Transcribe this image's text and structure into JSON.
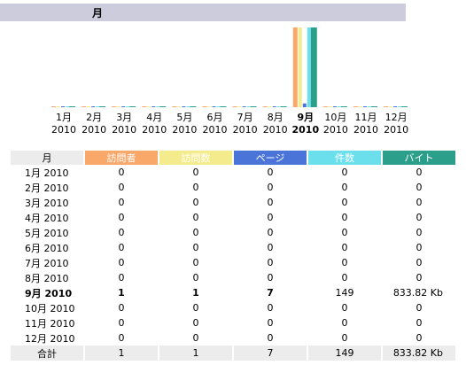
{
  "header": {
    "title": "月"
  },
  "table": {
    "columns": [
      "月",
      "訪問者",
      "訪問数",
      "ページ",
      "件数",
      "バイト"
    ],
    "colors": [
      "#f9a86a",
      "#f4ec8c",
      "#4a74d8",
      "#6cdfec",
      "#2c9f8a"
    ],
    "current": 8,
    "rows": [
      {
        "month": "1月",
        "year": "2010",
        "visitors": 0,
        "visits": 0,
        "pages": 0,
        "hits": 0,
        "bytes": 0
      },
      {
        "month": "2月",
        "year": "2010",
        "visitors": 0,
        "visits": 0,
        "pages": 0,
        "hits": 0,
        "bytes": 0
      },
      {
        "month": "3月",
        "year": "2010",
        "visitors": 0,
        "visits": 0,
        "pages": 0,
        "hits": 0,
        "bytes": 0
      },
      {
        "month": "4月",
        "year": "2010",
        "visitors": 0,
        "visits": 0,
        "pages": 0,
        "hits": 0,
        "bytes": 0
      },
      {
        "month": "5月",
        "year": "2010",
        "visitors": 0,
        "visits": 0,
        "pages": 0,
        "hits": 0,
        "bytes": 0
      },
      {
        "month": "6月",
        "year": "2010",
        "visitors": 0,
        "visits": 0,
        "pages": 0,
        "hits": 0,
        "bytes": 0
      },
      {
        "month": "7月",
        "year": "2010",
        "visitors": 0,
        "visits": 0,
        "pages": 0,
        "hits": 0,
        "bytes": 0
      },
      {
        "month": "8月",
        "year": "2010",
        "visitors": 0,
        "visits": 0,
        "pages": 0,
        "hits": 0,
        "bytes": 0
      },
      {
        "month": "9月",
        "year": "2010",
        "visitors": 1,
        "visits": 1,
        "pages": 7,
        "hits": 149,
        "bytes": {
          "value": 833.82,
          "label": "833.82 Kb"
        }
      },
      {
        "month": "10月",
        "year": "2010",
        "visitors": 0,
        "visits": 0,
        "pages": 0,
        "hits": 0,
        "bytes": 0
      },
      {
        "month": "11月",
        "year": "2010",
        "visitors": 0,
        "visits": 0,
        "pages": 0,
        "hits": 0,
        "bytes": 0
      },
      {
        "month": "12月",
        "year": "2010",
        "visitors": 0,
        "visits": 0,
        "pages": 0,
        "hits": 0,
        "bytes": 0
      }
    ],
    "total": {
      "label": "合計",
      "visitors": 1,
      "visits": 1,
      "pages": 7,
      "hits": 149,
      "bytes": {
        "value": 833.82,
        "label": "833.82 Kb"
      }
    }
  }
}
